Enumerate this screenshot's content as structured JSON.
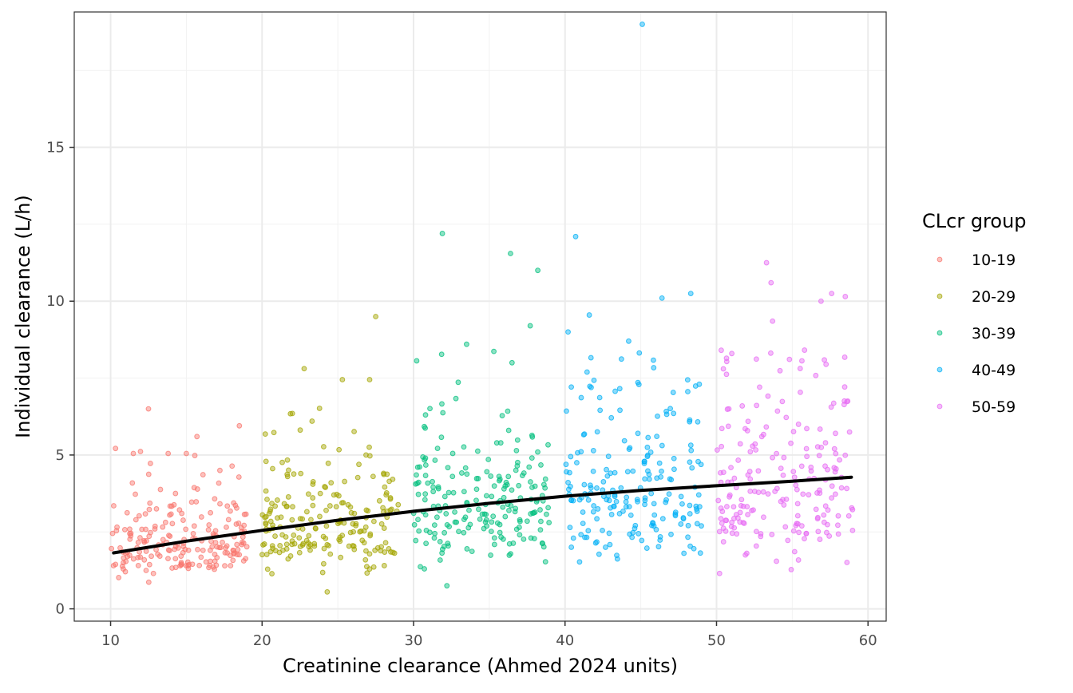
{
  "chart_data": {
    "type": "scatter",
    "title": "",
    "xlabel": "Creatinine clearance (Ahmed 2024 units)",
    "ylabel": "Individual clearance (L/h)",
    "xlim": [
      7.6,
      61.2
    ],
    "ylim": [
      -0.4,
      19.4
    ],
    "x_ticks": [
      10,
      20,
      30,
      40,
      50,
      60
    ],
    "x_tick_labels": [
      "10",
      "20",
      "30",
      "40",
      "50",
      "60"
    ],
    "y_ticks": [
      0,
      5,
      10,
      15
    ],
    "y_tick_labels": [
      "0",
      "5",
      "10",
      "15"
    ],
    "x_minor_ticks": [
      15,
      25,
      35,
      45,
      55
    ],
    "y_minor_ticks": [
      2.5,
      7.5,
      12.5,
      17.5
    ],
    "grid": true,
    "legend": {
      "title": "CLcr group",
      "placement": "right",
      "entries": [
        "10-19",
        "20-29",
        "30-39",
        "40-49",
        "50-59"
      ]
    },
    "series": [
      {
        "name": "10-19",
        "color": "#F8766D",
        "x_range": [
          10,
          19
        ],
        "n": 200,
        "center": 2.2,
        "spread": 0.65,
        "highlights": [
          [
            12.5,
            6.5
          ],
          [
            15.7,
            5.6
          ],
          [
            18.5,
            5.95
          ],
          [
            11.5,
            5.05
          ],
          [
            13.8,
            5.05
          ],
          [
            15.0,
            5.05
          ]
        ]
      },
      {
        "name": "20-29",
        "color": "#A3A500",
        "x_range": [
          20,
          29
        ],
        "n": 200,
        "center": 2.8,
        "spread": 0.65,
        "highlights": [
          [
            27.5,
            9.5
          ],
          [
            25.3,
            7.45
          ],
          [
            27.1,
            7.45
          ],
          [
            22.0,
            6.35
          ],
          [
            23.3,
            6.1
          ],
          [
            24.3,
            0.55
          ]
        ]
      },
      {
        "name": "30-39",
        "color": "#00BF7D",
        "x_range": [
          30,
          39
        ],
        "n": 200,
        "center": 3.3,
        "spread": 0.7,
        "highlights": [
          [
            31.9,
            12.2
          ],
          [
            36.4,
            11.55
          ],
          [
            38.2,
            11.0
          ],
          [
            37.7,
            9.2
          ],
          [
            33.5,
            8.6
          ],
          [
            36.5,
            8.0
          ],
          [
            32.2,
            0.75
          ]
        ]
      },
      {
        "name": "40-49",
        "color": "#00B0F6",
        "x_range": [
          40,
          49
        ],
        "n": 200,
        "center": 3.8,
        "spread": 0.75,
        "highlights": [
          [
            45.1,
            19.0
          ],
          [
            40.7,
            12.1
          ],
          [
            48.3,
            10.25
          ],
          [
            46.4,
            10.1
          ],
          [
            41.6,
            9.55
          ],
          [
            40.2,
            9.0
          ],
          [
            44.2,
            8.7
          ]
        ]
      },
      {
        "name": "50-59",
        "color": "#E76BF3",
        "x_range": [
          50,
          59
        ],
        "n": 200,
        "center": 4.2,
        "spread": 0.75,
        "highlights": [
          [
            53.3,
            11.25
          ],
          [
            53.6,
            10.6
          ],
          [
            57.6,
            10.25
          ],
          [
            58.5,
            10.15
          ],
          [
            56.9,
            10.0
          ],
          [
            53.7,
            9.35
          ],
          [
            50.2,
            1.15
          ]
        ]
      }
    ],
    "trend_line": {
      "color": "#000000",
      "x": [
        10.2,
        15,
        20,
        25,
        30,
        35,
        40,
        45,
        50,
        55,
        58.9
      ],
      "y": [
        1.82,
        2.2,
        2.55,
        2.88,
        3.17,
        3.43,
        3.66,
        3.85,
        4.0,
        4.15,
        4.28
      ]
    }
  }
}
